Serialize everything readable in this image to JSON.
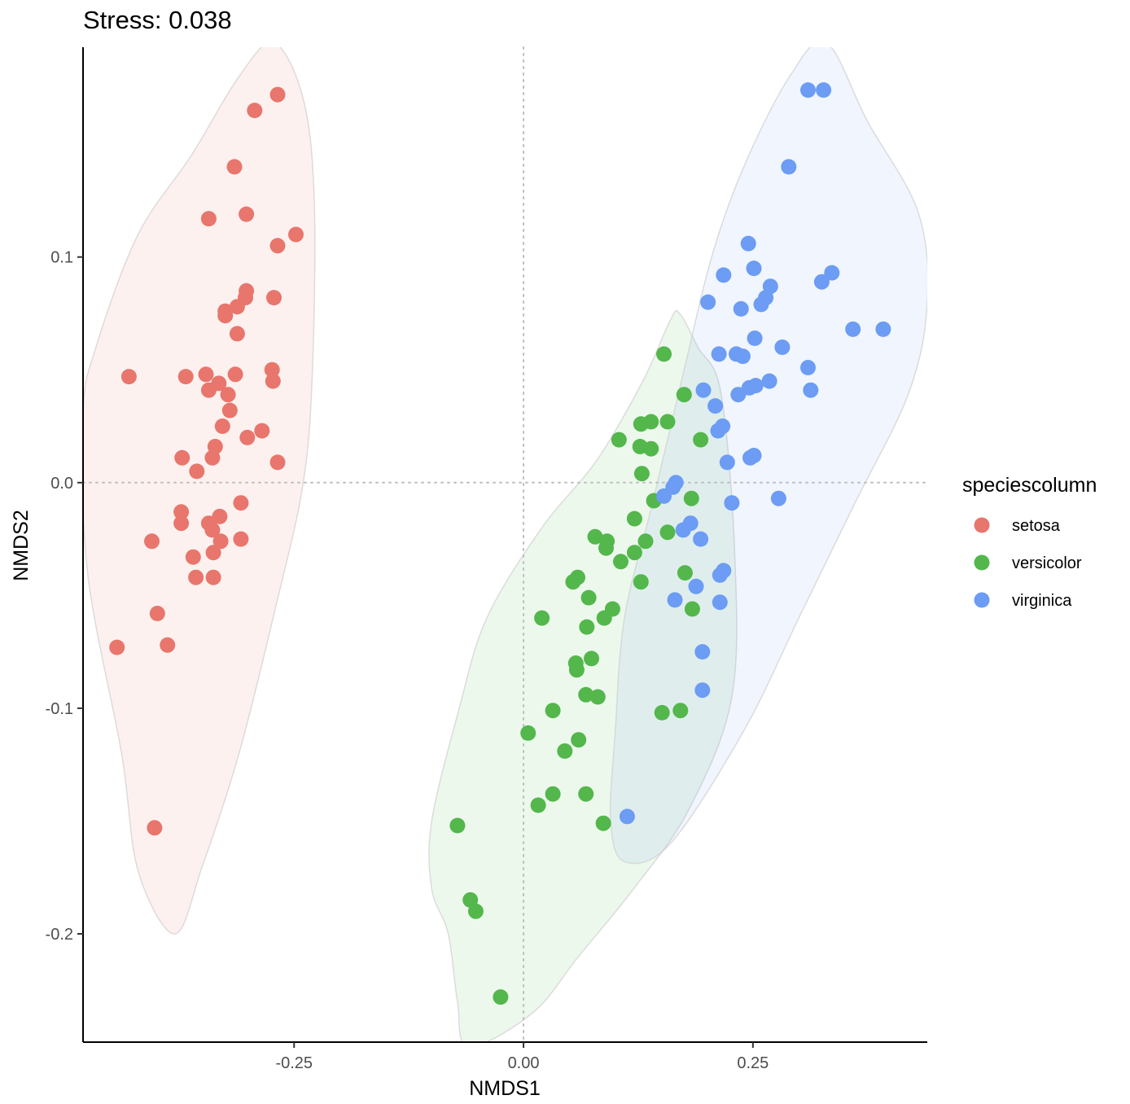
{
  "chart_data": {
    "type": "scatter",
    "title": "Stress: 0.038",
    "xlabel": "NMDS1",
    "ylabel": "NMDS2",
    "xlim": [
      -0.48,
      0.44
    ],
    "ylim": [
      -0.248,
      0.193
    ],
    "x_ticks": [
      -0.25,
      0.0,
      0.25
    ],
    "x_tick_labels": [
      "-0.25",
      "0.00",
      "0.25"
    ],
    "y_ticks": [
      -0.2,
      -0.1,
      0.0,
      0.1
    ],
    "y_tick_labels": [
      "-0.2",
      "-0.1",
      "0.0",
      "0.1"
    ],
    "reference_lines": {
      "x": 0,
      "y": 0,
      "style": "dotted",
      "color": "#bdbdbd"
    },
    "grid": false,
    "legend": {
      "title": "speciescolumn",
      "position": "right"
    },
    "series": [
      {
        "name": "setosa",
        "color": "#e8766c",
        "points": [
          [
            -0.268,
            0.172
          ],
          [
            -0.293,
            0.165
          ],
          [
            -0.315,
            0.14
          ],
          [
            -0.302,
            0.119
          ],
          [
            -0.343,
            0.117
          ],
          [
            -0.248,
            0.11
          ],
          [
            -0.268,
            0.105
          ],
          [
            -0.302,
            0.085
          ],
          [
            -0.272,
            0.082
          ],
          [
            -0.303,
            0.082
          ],
          [
            -0.312,
            0.078
          ],
          [
            -0.325,
            0.076
          ],
          [
            -0.325,
            0.074
          ],
          [
            -0.312,
            0.066
          ],
          [
            -0.43,
            0.047
          ],
          [
            -0.368,
            0.047
          ],
          [
            -0.346,
            0.048
          ],
          [
            -0.314,
            0.048
          ],
          [
            -0.274,
            0.05
          ],
          [
            -0.273,
            0.045
          ],
          [
            -0.332,
            0.044
          ],
          [
            -0.322,
            0.039
          ],
          [
            -0.343,
            0.041
          ],
          [
            -0.32,
            0.032
          ],
          [
            -0.328,
            0.025
          ],
          [
            -0.285,
            0.023
          ],
          [
            -0.301,
            0.02
          ],
          [
            -0.336,
            0.016
          ],
          [
            -0.372,
            0.011
          ],
          [
            -0.339,
            0.011
          ],
          [
            -0.356,
            0.005
          ],
          [
            -0.268,
            0.009
          ],
          [
            -0.308,
            -0.009
          ],
          [
            -0.373,
            -0.013
          ],
          [
            -0.373,
            -0.018
          ],
          [
            -0.331,
            -0.015
          ],
          [
            -0.343,
            -0.018
          ],
          [
            -0.339,
            -0.021
          ],
          [
            -0.33,
            -0.026
          ],
          [
            -0.308,
            -0.025
          ],
          [
            -0.405,
            -0.026
          ],
          [
            -0.338,
            -0.031
          ],
          [
            -0.36,
            -0.033
          ],
          [
            -0.357,
            -0.042
          ],
          [
            -0.338,
            -0.042
          ],
          [
            -0.399,
            -0.058
          ],
          [
            -0.443,
            -0.073
          ],
          [
            -0.388,
            -0.072
          ],
          [
            -0.402,
            -0.153
          ]
        ]
      },
      {
        "name": "versicolor",
        "color": "#53b74c",
        "points": [
          [
            0.153,
            0.057
          ],
          [
            0.175,
            0.039
          ],
          [
            0.128,
            0.026
          ],
          [
            0.139,
            0.027
          ],
          [
            0.157,
            0.027
          ],
          [
            0.104,
            0.019
          ],
          [
            0.127,
            0.016
          ],
          [
            0.139,
            0.015
          ],
          [
            0.193,
            0.019
          ],
          [
            0.129,
            0.004
          ],
          [
            0.183,
            -0.007
          ],
          [
            0.142,
            -0.008
          ],
          [
            0.121,
            -0.016
          ],
          [
            0.157,
            -0.022
          ],
          [
            0.078,
            -0.024
          ],
          [
            0.091,
            -0.026
          ],
          [
            0.133,
            -0.026
          ],
          [
            0.09,
            -0.029
          ],
          [
            0.121,
            -0.031
          ],
          [
            0.106,
            -0.035
          ],
          [
            0.176,
            -0.04
          ],
          [
            0.059,
            -0.042
          ],
          [
            0.054,
            -0.044
          ],
          [
            0.128,
            -0.044
          ],
          [
            0.071,
            -0.051
          ],
          [
            0.097,
            -0.056
          ],
          [
            0.184,
            -0.056
          ],
          [
            0.088,
            -0.06
          ],
          [
            0.02,
            -0.06
          ],
          [
            0.069,
            -0.064
          ],
          [
            0.074,
            -0.078
          ],
          [
            0.058,
            -0.083
          ],
          [
            0.057,
            -0.08
          ],
          [
            0.068,
            -0.094
          ],
          [
            0.081,
            -0.095
          ],
          [
            0.032,
            -0.101
          ],
          [
            0.151,
            -0.102
          ],
          [
            0.171,
            -0.101
          ],
          [
            0.005,
            -0.111
          ],
          [
            0.06,
            -0.114
          ],
          [
            0.045,
            -0.119
          ],
          [
            0.032,
            -0.138
          ],
          [
            0.068,
            -0.138
          ],
          [
            0.016,
            -0.143
          ],
          [
            0.087,
            -0.151
          ],
          [
            -0.072,
            -0.152
          ],
          [
            -0.058,
            -0.185
          ],
          [
            -0.052,
            -0.19
          ],
          [
            -0.025,
            -0.228
          ]
        ]
      },
      {
        "name": "virginica",
        "color": "#6c9cf3",
        "points": [
          [
            0.31,
            0.174
          ],
          [
            0.327,
            0.174
          ],
          [
            0.289,
            0.14
          ],
          [
            0.245,
            0.106
          ],
          [
            0.218,
            0.092
          ],
          [
            0.251,
            0.095
          ],
          [
            0.336,
            0.093
          ],
          [
            0.325,
            0.089
          ],
          [
            0.269,
            0.087
          ],
          [
            0.264,
            0.082
          ],
          [
            0.259,
            0.079
          ],
          [
            0.201,
            0.08
          ],
          [
            0.237,
            0.077
          ],
          [
            0.359,
            0.068
          ],
          [
            0.392,
            0.068
          ],
          [
            0.252,
            0.064
          ],
          [
            0.282,
            0.06
          ],
          [
            0.213,
            0.057
          ],
          [
            0.232,
            0.057
          ],
          [
            0.239,
            0.056
          ],
          [
            0.31,
            0.051
          ],
          [
            0.268,
            0.045
          ],
          [
            0.253,
            0.043
          ],
          [
            0.246,
            0.042
          ],
          [
            0.313,
            0.041
          ],
          [
            0.196,
            0.041
          ],
          [
            0.234,
            0.039
          ],
          [
            0.209,
            0.034
          ],
          [
            0.217,
            0.025
          ],
          [
            0.212,
            0.023
          ],
          [
            0.251,
            0.012
          ],
          [
            0.247,
            0.011
          ],
          [
            0.222,
            0.009
          ],
          [
            0.166,
            0.0
          ],
          [
            0.163,
            -0.002
          ],
          [
            0.153,
            -0.006
          ],
          [
            0.278,
            -0.007
          ],
          [
            0.227,
            -0.009
          ],
          [
            0.182,
            -0.018
          ],
          [
            0.174,
            -0.021
          ],
          [
            0.193,
            -0.025
          ],
          [
            0.218,
            -0.039
          ],
          [
            0.214,
            -0.041
          ],
          [
            0.188,
            -0.046
          ],
          [
            0.165,
            -0.052
          ],
          [
            0.214,
            -0.053
          ],
          [
            0.195,
            -0.075
          ],
          [
            0.195,
            -0.092
          ],
          [
            0.113,
            -0.148
          ]
        ]
      }
    ],
    "hulls": [
      {
        "name": "setosa",
        "fill": "#e8766c",
        "outline": [
          [
            -0.272,
            0.195
          ],
          [
            -0.24,
            0.17
          ],
          [
            -0.228,
            0.125
          ],
          [
            -0.23,
            0.05
          ],
          [
            -0.24,
            0.0
          ],
          [
            -0.27,
            -0.055
          ],
          [
            -0.31,
            -0.12
          ],
          [
            -0.35,
            -0.17
          ],
          [
            -0.38,
            -0.2
          ],
          [
            -0.42,
            -0.172
          ],
          [
            -0.438,
            -0.12
          ],
          [
            -0.475,
            -0.04
          ],
          [
            -0.48,
            0.03
          ],
          [
            -0.466,
            0.06
          ],
          [
            -0.42,
            0.11
          ],
          [
            -0.362,
            0.145
          ],
          [
            -0.31,
            0.18
          ]
        ]
      },
      {
        "name": "versicolor",
        "fill": "#53b74c",
        "outline": [
          [
            0.17,
            0.075
          ],
          [
            0.19,
            0.06
          ],
          [
            0.215,
            0.04
          ],
          [
            0.23,
            -0.03
          ],
          [
            0.227,
            -0.095
          ],
          [
            0.18,
            -0.145
          ],
          [
            0.12,
            -0.18
          ],
          [
            0.06,
            -0.21
          ],
          [
            0.01,
            -0.235
          ],
          [
            -0.06,
            -0.25
          ],
          [
            -0.072,
            -0.23
          ],
          [
            -0.082,
            -0.2
          ],
          [
            -0.1,
            -0.18
          ],
          [
            -0.1,
            -0.15
          ],
          [
            -0.07,
            -0.1
          ],
          [
            -0.04,
            -0.06
          ],
          [
            0.02,
            -0.02
          ],
          [
            0.08,
            0.01
          ],
          [
            0.13,
            0.045
          ],
          [
            0.16,
            0.072
          ]
        ]
      },
      {
        "name": "virginica",
        "fill": "#6c9cf3",
        "outline": [
          [
            0.33,
            0.195
          ],
          [
            0.375,
            0.16
          ],
          [
            0.43,
            0.12
          ],
          [
            0.44,
            0.08
          ],
          [
            0.42,
            0.04
          ],
          [
            0.36,
            -0.01
          ],
          [
            0.3,
            -0.06
          ],
          [
            0.24,
            -0.11
          ],
          [
            0.16,
            -0.16
          ],
          [
            0.11,
            -0.168
          ],
          [
            0.095,
            -0.15
          ],
          [
            0.1,
            -0.11
          ],
          [
            0.11,
            -0.06
          ],
          [
            0.14,
            -0.01
          ],
          [
            0.175,
            0.05
          ],
          [
            0.205,
            0.1
          ],
          [
            0.24,
            0.14
          ],
          [
            0.29,
            0.18
          ]
        ]
      }
    ]
  }
}
